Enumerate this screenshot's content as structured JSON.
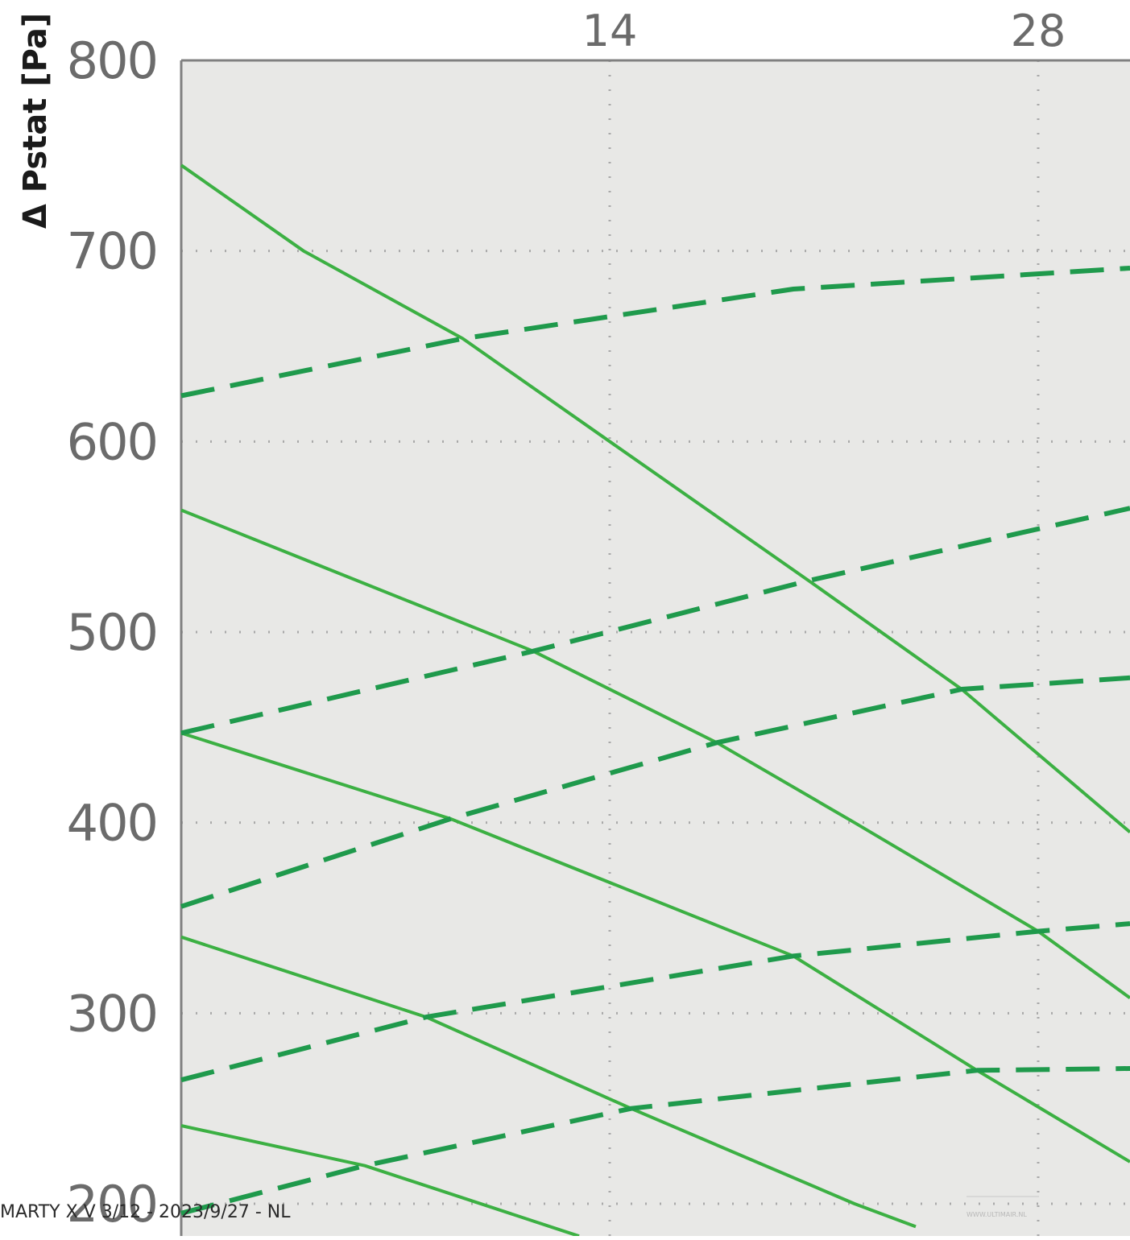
{
  "chart_data": {
    "type": "line",
    "ylabel": "Δ Pstat [Pa]",
    "xlabel": "",
    "title": "",
    "x_ticks": [
      "14",
      "28"
    ],
    "x_tick_values": [
      14,
      28
    ],
    "xlim": [
      0,
      31
    ],
    "y_ticks": [
      "200",
      "300",
      "400",
      "500",
      "600",
      "700",
      "800"
    ],
    "ylim": [
      200,
      800
    ],
    "grid": true,
    "grid_style": "dotted",
    "legend": "none",
    "colors": {
      "solid": "#3cb043",
      "dashed": "#1f9a4c",
      "plot_bg": "#e8e8e6",
      "axis": "#808080"
    },
    "series": [
      {
        "style": "solid",
        "points": [
          [
            0,
            745
          ],
          [
            4,
            700
          ],
          [
            9.2,
            654
          ],
          [
            14,
            600
          ],
          [
            20.5,
            527
          ],
          [
            25.5,
            470
          ],
          [
            31,
            395
          ]
        ]
      },
      {
        "style": "solid",
        "points": [
          [
            0,
            564
          ],
          [
            11.5,
            490
          ],
          [
            17.5,
            442
          ],
          [
            22,
            400
          ],
          [
            28,
            343
          ],
          [
            31,
            308
          ]
        ]
      },
      {
        "style": "solid",
        "points": [
          [
            0,
            447
          ],
          [
            8.8,
            402
          ],
          [
            20,
            330
          ],
          [
            26,
            270
          ],
          [
            31,
            222
          ]
        ]
      },
      {
        "style": "solid",
        "points": [
          [
            0,
            340
          ],
          [
            8,
            298
          ],
          [
            14.7,
            250
          ],
          [
            22,
            200
          ],
          [
            24,
            188
          ]
        ]
      },
      {
        "style": "solid",
        "points": [
          [
            0,
            241
          ],
          [
            6,
            220
          ],
          [
            13,
            183
          ]
        ]
      },
      {
        "style": "dashed",
        "points": [
          [
            0,
            624
          ],
          [
            9.2,
            654
          ],
          [
            20,
            680
          ],
          [
            31,
            691
          ]
        ]
      },
      {
        "style": "dashed",
        "points": [
          [
            0,
            447
          ],
          [
            11.5,
            490
          ],
          [
            20.5,
            527
          ],
          [
            31,
            565
          ]
        ]
      },
      {
        "style": "dashed",
        "points": [
          [
            0,
            356
          ],
          [
            8.8,
            402
          ],
          [
            17.5,
            442
          ],
          [
            25.5,
            470
          ],
          [
            31,
            476
          ]
        ]
      },
      {
        "style": "dashed",
        "points": [
          [
            0,
            265
          ],
          [
            8,
            298
          ],
          [
            20,
            330
          ],
          [
            28,
            343
          ],
          [
            31,
            347
          ]
        ]
      },
      {
        "style": "dashed",
        "points": [
          [
            0,
            195
          ],
          [
            6,
            220
          ],
          [
            14.7,
            250
          ],
          [
            26,
            270
          ],
          [
            31,
            271
          ]
        ]
      }
    ]
  },
  "footer": {
    "text": "MARTY X V 3/12 - 2023/9/27 - NL",
    "watermark": "WWW.ULTIMAIR.NL"
  }
}
